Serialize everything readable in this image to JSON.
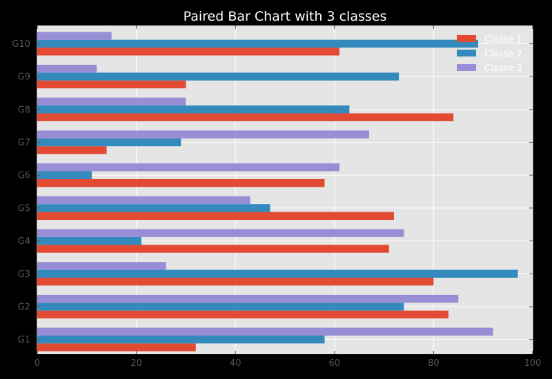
{
  "chart_data": {
    "type": "bar",
    "orientation": "horizontal",
    "title": "Paired Bar Chart with 3 classes",
    "xlabel": "",
    "ylabel": "",
    "categories": [
      "G1",
      "G2",
      "G3",
      "G4",
      "G5",
      "G6",
      "G7",
      "G8",
      "G9",
      "G10"
    ],
    "series": [
      {
        "name": "Classe 1",
        "color": "#E24A33",
        "values": [
          32,
          83,
          80,
          71,
          72,
          58,
          14,
          84,
          30,
          61
        ]
      },
      {
        "name": "Classe 2",
        "color": "#348ABD",
        "values": [
          58,
          74,
          97,
          21,
          47,
          11,
          29,
          63,
          73,
          89
        ]
      },
      {
        "name": "Classe 3",
        "color": "#988ED5",
        "values": [
          92,
          85,
          26,
          74,
          43,
          61,
          67,
          30,
          12,
          15
        ]
      }
    ],
    "xlim": [
      0,
      100
    ],
    "xticks": [
      0,
      20,
      40,
      60,
      80,
      100
    ],
    "grid": true,
    "legend_position": "top-right",
    "colors": {
      "figure_background": "#000000",
      "axes_background": "#E5E5E5",
      "grid": "#FFFFFF",
      "tick_label": "#555555",
      "title": "#FFFFFF",
      "legend_text": "#FFFFFF"
    }
  }
}
